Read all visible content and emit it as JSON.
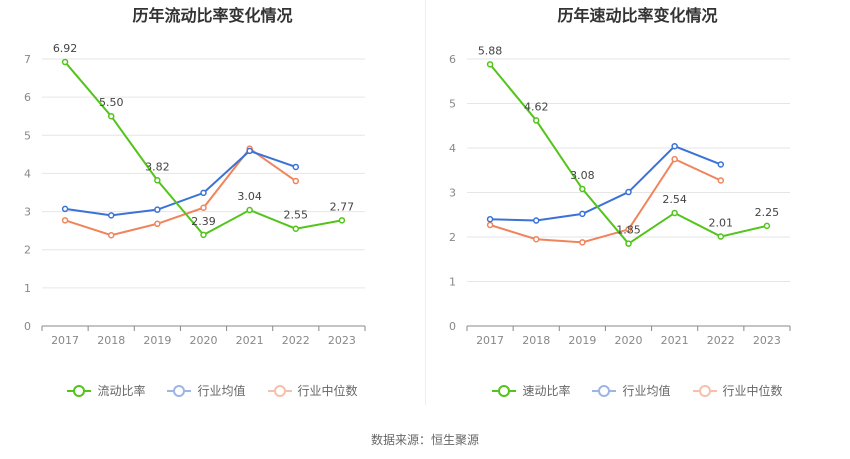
{
  "footer": "数据来源：恒生聚源",
  "legend_labels": [
    "流动比率",
    "行业均值",
    "行业中位数"
  ],
  "legend_labels_right": [
    "速动比率",
    "行业均值",
    "行业中位数"
  ],
  "chart_data": [
    {
      "type": "line",
      "title": "历年流动比率变化情况",
      "x": [
        "2017",
        "2018",
        "2019",
        "2020",
        "2021",
        "2022",
        "2023"
      ],
      "ylim": [
        0,
        7
      ],
      "yticks": [
        "0",
        "1",
        "2",
        "3",
        "4",
        "5",
        "6",
        "7"
      ],
      "grid": true,
      "legend_position": "bottom",
      "series": [
        {
          "name": "流动比率",
          "color": "#52c41a",
          "values": [
            6.92,
            5.5,
            3.82,
            2.39,
            3.04,
            2.55,
            2.77
          ],
          "labels": [
            "6.92",
            "5.50",
            "3.82",
            "2.39",
            "3.04",
            "2.55",
            "2.77"
          ]
        },
        {
          "name": "行业均值",
          "color": "#3a72d8",
          "values": [
            3.07,
            2.9,
            3.05,
            3.49,
            4.59,
            4.17,
            null
          ]
        },
        {
          "name": "行业中位数",
          "color": "#f0845c",
          "values": [
            2.77,
            2.38,
            2.68,
            3.1,
            4.65,
            3.8,
            null
          ]
        }
      ]
    },
    {
      "type": "line",
      "title": "历年速动比率变化情况",
      "x": [
        "2017",
        "2018",
        "2019",
        "2020",
        "2021",
        "2022",
        "2023"
      ],
      "ylim": [
        0,
        6
      ],
      "yticks": [
        "0",
        "1",
        "2",
        "3",
        "4",
        "5",
        "6"
      ],
      "grid": true,
      "legend_position": "bottom",
      "series": [
        {
          "name": "速动比率",
          "color": "#52c41a",
          "values": [
            5.88,
            4.62,
            3.08,
            1.85,
            2.54,
            2.01,
            2.25
          ],
          "labels": [
            "5.88",
            "4.62",
            "3.08",
            "1.85",
            "2.54",
            "2.01",
            "2.25"
          ]
        },
        {
          "name": "行业均值",
          "color": "#3a72d8",
          "values": [
            2.4,
            2.37,
            2.52,
            3.01,
            4.04,
            3.63,
            null
          ]
        },
        {
          "name": "行业中位数",
          "color": "#f0845c",
          "values": [
            2.27,
            1.95,
            1.88,
            2.17,
            3.75,
            3.27,
            null
          ]
        }
      ]
    }
  ]
}
